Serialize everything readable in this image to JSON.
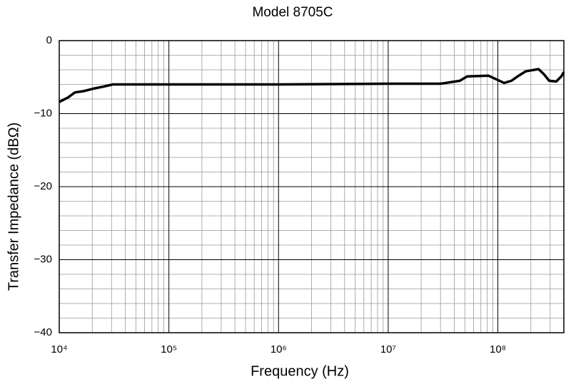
{
  "chart_data": {
    "type": "line",
    "title": "Model 8705C",
    "x_label": "Frequency (Hz)",
    "y_label": "Transfer Impedance (dBΩ)",
    "log_x": true,
    "grid": true,
    "minor_grid": true,
    "xlim": [
      10000,
      400000000
    ],
    "xticks": [
      {
        "value": 10000,
        "label": "10⁴"
      },
      {
        "value": 100000,
        "label": "10⁵"
      },
      {
        "value": 1000000,
        "label": "10⁶"
      },
      {
        "value": 10000000,
        "label": "10⁷"
      },
      {
        "value": 100000000,
        "label": "10⁸"
      }
    ],
    "ylim": [
      -40,
      0
    ],
    "yticks": [
      0,
      {
        "value": -10,
        "label": "−10"
      },
      {
        "value": -20,
        "label": "−20"
      },
      {
        "value": -30,
        "label": "−30"
      },
      {
        "value": -40,
        "label": "−40"
      }
    ],
    "x": [
      10000,
      12000,
      13900,
      16900,
      20200,
      25300,
      30800,
      100000,
      1000000,
      10000000,
      30000000,
      33500000,
      45000000,
      52500000,
      82000000,
      100000000,
      114000000,
      133000000,
      155000000,
      180000000,
      235000000,
      263000000,
      294000000,
      341000000,
      379000000,
      400000000
    ],
    "series": [
      {
        "name": "Model 8705C",
        "color": "#000000",
        "values": [
          -8.4,
          -7.8,
          -7.1,
          -6.9,
          -6.6,
          -6.3,
          -6.0,
          -6.0,
          -6.0,
          -5.9,
          -5.9,
          -5.8,
          -5.5,
          -4.9,
          -4.8,
          -5.4,
          -5.8,
          -5.5,
          -4.8,
          -4.2,
          -3.9,
          -4.6,
          -5.5,
          -5.6,
          -4.9,
          -4.3
        ]
      }
    ]
  }
}
